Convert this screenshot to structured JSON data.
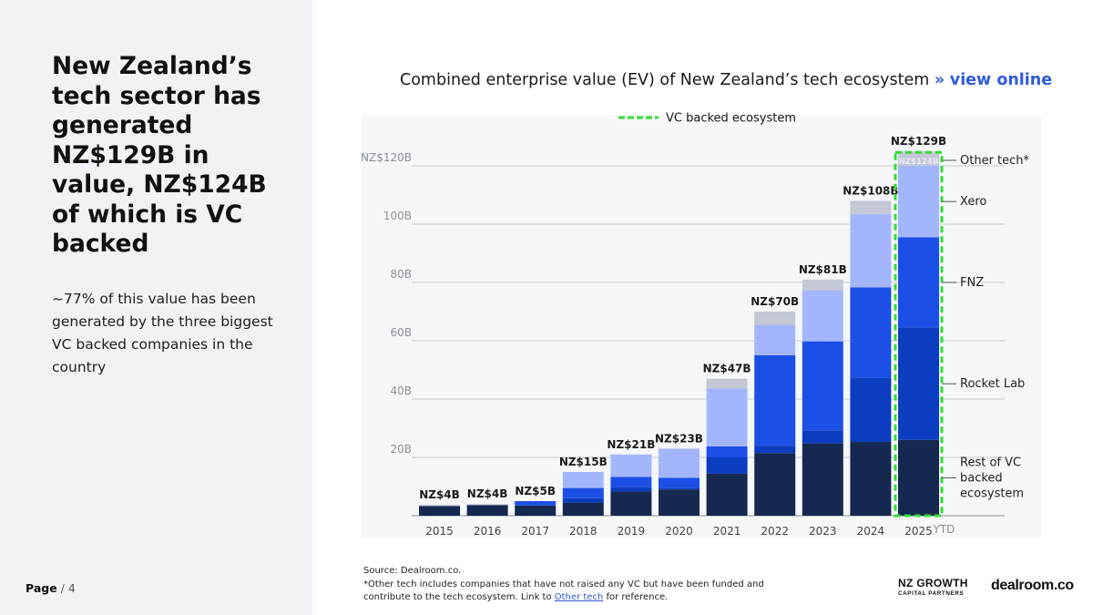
{
  "headline": "New Zealand’s tech sector has generated NZ$129B in value, NZ$124B of which is VC backed",
  "subtext": "~77% of this value has been generated by the three biggest VC backed companies in the country",
  "page": {
    "label": "Page",
    "separator": " / ",
    "number": "4"
  },
  "chart_title": {
    "text": "Combined enterprise value (EV) of New Zealand’s tech ecosystem",
    "arrows": "»",
    "link_text": "view online"
  },
  "source": {
    "line1": "Source:  Dealroom.co.",
    "line2_before": "*Other tech includes companies that have not raised any VC but have been funded and contribute to the tech ecosystem. Link to",
    "link": "Other tech",
    "line2_after": "for reference."
  },
  "logos": {
    "nzgcp_line1": "NZ GROWTH",
    "nzgcp_line2": "CAPITAL PARTNERS",
    "dealroom": "dealroom.co"
  },
  "chart_data": {
    "type": "bar",
    "stacked": true,
    "title": "Combined enterprise value (EV) of New Zealand’s tech ecosystem",
    "categories": [
      "2015",
      "2016",
      "2017",
      "2018",
      "2019",
      "2020",
      "2021",
      "2022",
      "2023",
      "2024",
      "2025"
    ],
    "category_suffix_last": "YTD",
    "y_ticks": [
      "20B",
      "40B",
      "60B",
      "80B",
      "100B",
      "NZ$120B"
    ],
    "y_tick_values": [
      20,
      40,
      60,
      80,
      100,
      120
    ],
    "ylim": [
      0,
      130
    ],
    "grid": true,
    "series": [
      {
        "name": "Rest of VC backed ecosystem",
        "color": "#142850",
        "values": [
          3.3,
          3.6,
          3.5,
          4.5,
          8.3,
          9.0,
          14.4,
          21.5,
          24.8,
          25.3,
          26.0
        ]
      },
      {
        "name": "Rocket Lab",
        "color": "#0c3cbf",
        "values": [
          0,
          0,
          0,
          1.5,
          1.5,
          0.5,
          5.6,
          2.5,
          4.5,
          22.0,
          38.5
        ]
      },
      {
        "name": "FNZ",
        "color": "#1c4fe5",
        "values": [
          0,
          0,
          1.5,
          3.5,
          3.5,
          3.5,
          3.8,
          31.0,
          30.5,
          31.0,
          31.0
        ]
      },
      {
        "name": "Xero",
        "color": "#a4b6fb",
        "values": [
          0,
          0,
          0,
          5.5,
          7.7,
          10.0,
          19.9,
          10.5,
          17.5,
          25.2,
          24.5
        ]
      },
      {
        "name": "Other tech*",
        "color": "#c3c8d4",
        "values": [
          0.4,
          0.4,
          0,
          0,
          0,
          0,
          3.3,
          4.5,
          3.7,
          4.5,
          5.0
        ]
      }
    ],
    "totals": [
      "NZ$4B",
      "NZ$4B",
      "NZ$5B",
      "NZ$15B",
      "NZ$21B",
      "NZ$23B",
      "NZ$47B",
      "NZ$70B",
      "NZ$81B",
      "NZ$108B",
      "NZ$129B"
    ],
    "highlight": {
      "category": "2025",
      "label": "NZ$124B",
      "value": 124
    },
    "legend": [
      {
        "label": "VC backed ecosystem",
        "style": "dashed",
        "color": "#33dd33"
      }
    ],
    "series_labels": [
      "Other tech*",
      "Xero",
      "FNZ",
      "Rocket Lab",
      "Rest of VC\nbacked\necosystem"
    ]
  }
}
